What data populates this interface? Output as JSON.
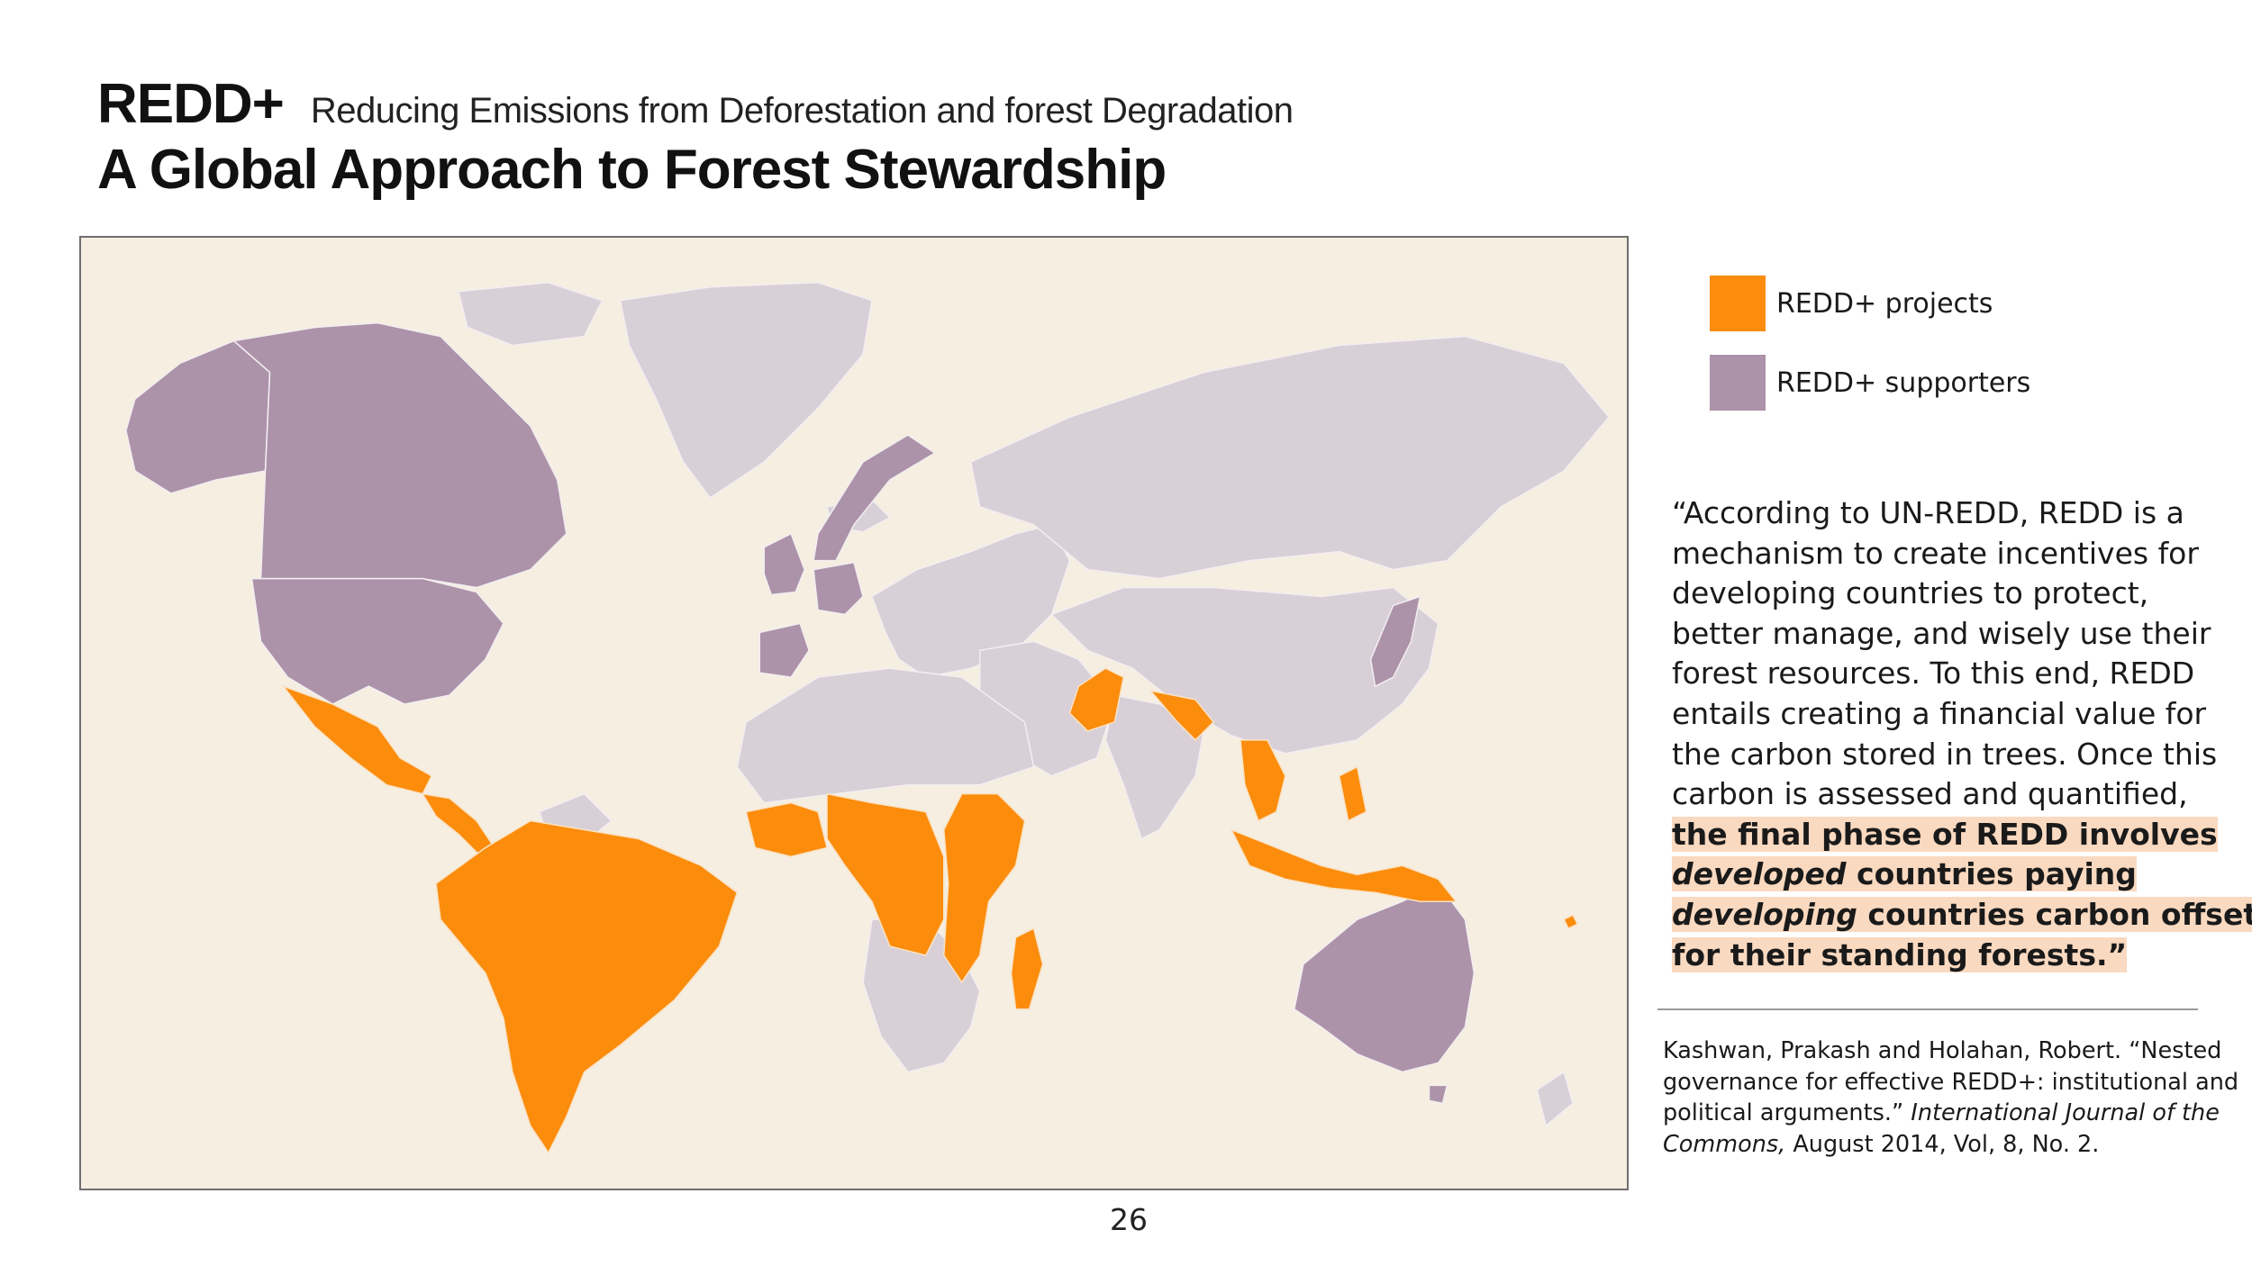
{
  "header": {
    "acronym": "REDD+",
    "expansion": "Reducing Emissions from Deforestation and forest Degradation",
    "subtitle": "A Global Approach to Forest Stewardship"
  },
  "colors": {
    "projects": "#fb8c0c",
    "supporters": "#ac93a9",
    "other_land": "#d8d0d6",
    "ocean": "#f5eee1"
  },
  "legend": {
    "items": [
      {
        "label": "REDD+ projects",
        "color": "#fb8c0c"
      },
      {
        "label": "REDD+ supporters",
        "color": "#ac93a9"
      }
    ]
  },
  "map": {
    "supporters": [
      "United States",
      "Canada",
      "United Kingdom",
      "Norway",
      "Germany",
      "Spain",
      "Japan",
      "Australia"
    ],
    "projects": [
      "Mexico",
      "Central America",
      "Brazil",
      "Argentina",
      "Peru",
      "Colombia",
      "West Africa",
      "Central Africa",
      "East Africa",
      "Madagascar",
      "Pakistan",
      "Nepal",
      "Bangladesh",
      "Southeast Asia",
      "Indonesia",
      "Papua New Guinea"
    ]
  },
  "quote": {
    "lines": [
      "“According to UN-REDD, REDD is a",
      "mechanism to create incentives for",
      "developing countries to protect,",
      "better manage, and wisely use their",
      "forest resources.  To this end, REDD",
      "entails creating a financial value for",
      "the carbon stored in trees.  Once this",
      "carbon is assessed and quantified,"
    ],
    "highlight": {
      "line1": "the final phase of REDD involves",
      "line2_em": "developed",
      "line2_rest": " countries paying",
      "line3_em": "developing",
      "line3_rest": " countries carbon offsets",
      "line4": "for their standing forests.”"
    }
  },
  "citation": {
    "line1": "Kashwan, Prakash and Holahan, Robert. “Nested",
    "line2": "governance for effective REDD+: institutional and",
    "line3_a": "political arguments.” ",
    "line3_em": "International Journal of the",
    "line4_em": "Commons,",
    "line4_rest": " August 2014, Vol, 8, No. 2."
  },
  "page_number": "26"
}
